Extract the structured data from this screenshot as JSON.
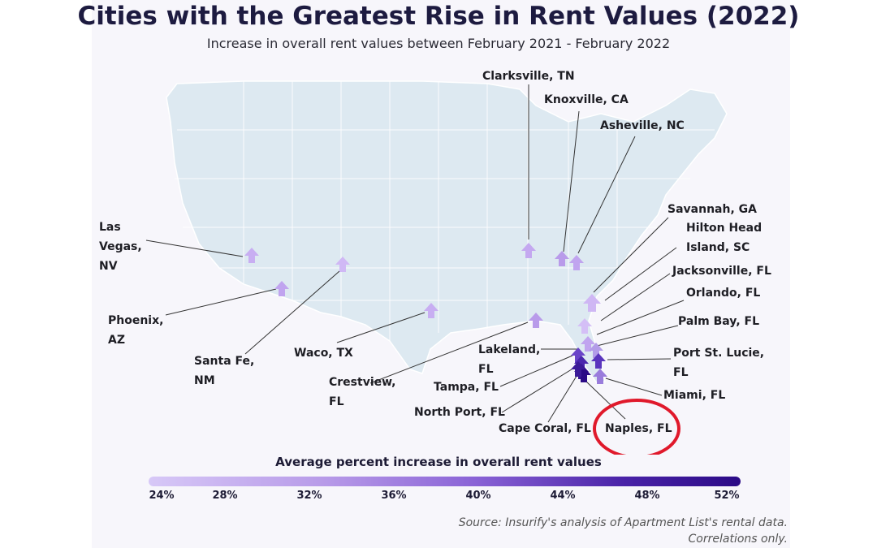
{
  "title": "Cities with the Greatest Rise in Rent Values (2022)",
  "subtitle": "Increase in overall rent values between February 2021 - February 2022",
  "cities": [
    {
      "id": "clarksville",
      "label_lines": [
        "Clarksville, TN"
      ]
    },
    {
      "id": "knoxville",
      "label_lines": [
        "Knoxville, CA"
      ]
    },
    {
      "id": "asheville",
      "label_lines": [
        "Asheville, NC"
      ]
    },
    {
      "id": "savannah",
      "label_lines": [
        "Savannah, GA"
      ]
    },
    {
      "id": "hilton-head",
      "label_lines": [
        "Hilton Head",
        "Island, SC"
      ]
    },
    {
      "id": "jacksonville",
      "label_lines": [
        "Jacksonville, FL"
      ]
    },
    {
      "id": "orlando",
      "label_lines": [
        "Orlando, FL"
      ]
    },
    {
      "id": "palm-bay",
      "label_lines": [
        "Palm Bay, FL"
      ]
    },
    {
      "id": "port-st-lucie",
      "label_lines": [
        "Port St. Lucie,",
        "FL"
      ]
    },
    {
      "id": "miami",
      "label_lines": [
        "Miami, FL"
      ]
    },
    {
      "id": "naples",
      "label_lines": [
        "Naples, FL"
      ],
      "highlighted": true
    },
    {
      "id": "cape-coral",
      "label_lines": [
        "Cape Coral, FL"
      ]
    },
    {
      "id": "north-port",
      "label_lines": [
        "North Port, FL"
      ]
    },
    {
      "id": "tampa",
      "label_lines": [
        "Tampa, FL"
      ]
    },
    {
      "id": "lakeland",
      "label_lines": [
        "Lakeland,",
        "FL"
      ]
    },
    {
      "id": "crestview",
      "label_lines": [
        "Crestview,",
        "FL"
      ]
    },
    {
      "id": "waco",
      "label_lines": [
        "Waco, TX"
      ]
    },
    {
      "id": "santa-fe",
      "label_lines": [
        "Santa Fe,",
        "NM"
      ]
    },
    {
      "id": "phoenix",
      "label_lines": [
        "Phoenix,",
        "AZ"
      ]
    },
    {
      "id": "las-vegas",
      "label_lines": [
        "Las",
        "Vegas,",
        "NV"
      ]
    }
  ],
  "legend": {
    "title": "Average percent increase in overall rent values",
    "ticks": [
      "24%",
      "28%",
      "32%",
      "36%",
      "40%",
      "44%",
      "48%",
      "52%"
    ],
    "color_start": "#d7c8f7",
    "color_end": "#2b0a86"
  },
  "source_line1": "Source: Insurify's analysis of Apartment List's rental data.",
  "source_line2": "Correlations only.",
  "highlight_color": "#e0192b",
  "map_fill": "#dde9f1"
}
